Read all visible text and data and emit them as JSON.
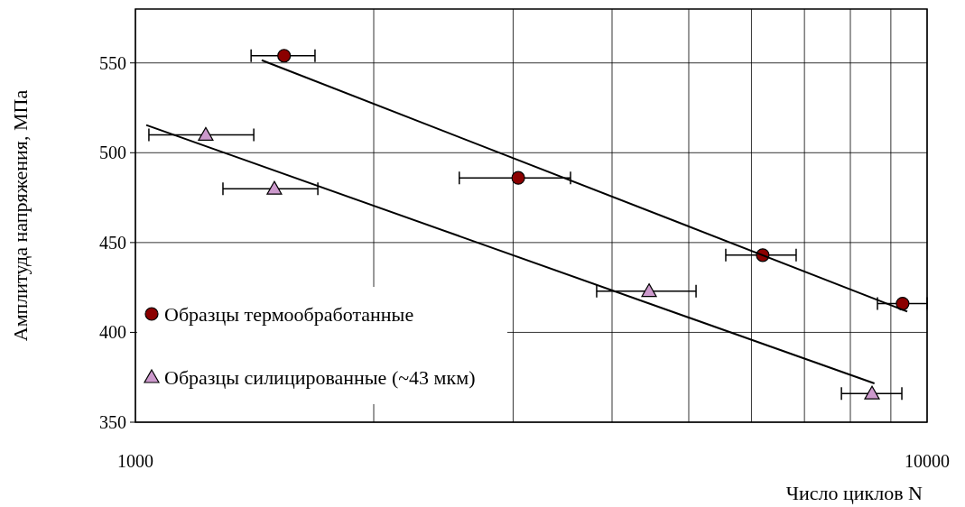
{
  "chart_data": {
    "type": "scatter",
    "xlabel": "Число циклов N",
    "ylabel": "Амплитуда напряжения, МПа",
    "log": "x",
    "xlim": [
      1000,
      10000
    ],
    "ylim": [
      350,
      580
    ],
    "xticks": [
      1000,
      {
        "value": 2000,
        "label": null
      },
      {
        "value": 3000,
        "label": null
      },
      {
        "value": 4000,
        "label": null
      },
      {
        "value": 5000,
        "label": null
      },
      {
        "value": 6000,
        "label": null
      },
      {
        "value": 7000,
        "label": null
      },
      {
        "value": 8000,
        "label": null
      },
      {
        "value": 9000,
        "label": null
      },
      10000
    ],
    "yticks": [
      350,
      400,
      450,
      500,
      550
    ],
    "grid": true,
    "legend": "bottom left",
    "series": [
      {
        "name": "Образцы термообработанные",
        "type": "scatter",
        "marker": "circle",
        "color": "#8b0000",
        "x": [
          1541,
          3045,
          6200,
          9313
        ],
        "values": [
          554,
          486,
          443,
          416
        ],
        "xerrors": [
          [
            1400,
            1686
          ],
          [
            2565,
            3545
          ],
          [
            5568,
            6833
          ],
          [
            8656,
            10000
          ]
        ]
      },
      {
        "name": "Образцы силицированные (~43 мкм)",
        "type": "scatter",
        "marker": "triangle",
        "color": "#cc99cc",
        "x": [
          1227,
          1498,
          4455,
          8520
        ],
        "values": [
          510,
          480,
          423,
          366
        ],
        "xerrors": [
          [
            1040,
            1411
          ],
          [
            1290,
            1700
          ],
          [
            3825,
            5107
          ],
          [
            7795,
            9292
          ]
        ]
      },
      {
        "type": "line",
        "color": "#000000",
        "x": [
          1444,
          9440
        ],
        "values": [
          551.5,
          411.6
        ]
      },
      {
        "type": "line",
        "color": "#000000",
        "x": [
          1032,
          8580
        ],
        "values": [
          515.4,
          371.6
        ]
      }
    ]
  }
}
